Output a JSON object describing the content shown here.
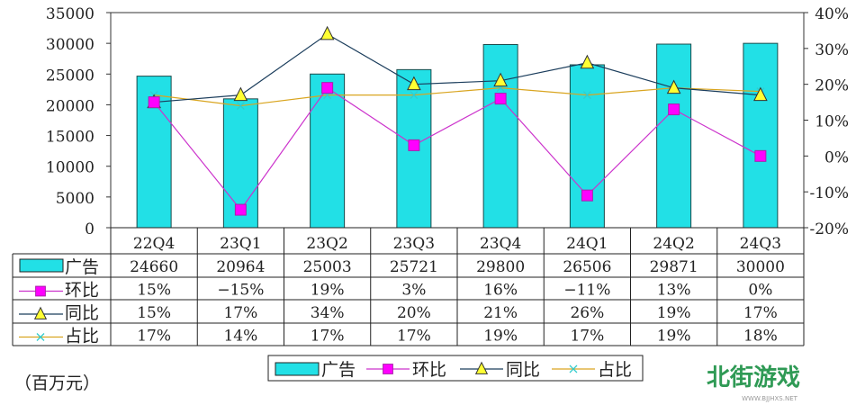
{
  "chart_data": {
    "type": "bar",
    "categories": [
      "22Q4",
      "23Q1",
      "23Q2",
      "23Q3",
      "23Q4",
      "24Q1",
      "24Q2",
      "24Q3"
    ],
    "unit_label": "（百万元）",
    "left_axis": {
      "ylim": [
        0,
        35000
      ],
      "ticks": [
        "35000",
        "30000",
        "25000",
        "20000",
        "15000",
        "10000",
        "5000",
        "0"
      ]
    },
    "right_axis": {
      "ylim": [
        -20,
        40
      ],
      "ticks": [
        "40%",
        "30%",
        "20%",
        "10%",
        "0%",
        "-10%",
        "-20%"
      ]
    },
    "series": [
      {
        "name": "广告",
        "type": "bar",
        "axis": "left",
        "color": "#22e0e6",
        "values": [
          24660,
          20964,
          25003,
          25721,
          29800,
          26506,
          29871,
          30000
        ],
        "labels": [
          "24660",
          "20964",
          "25003",
          "25721",
          "29800",
          "26506",
          "29871",
          "30000"
        ]
      },
      {
        "name": "环比",
        "type": "line",
        "axis": "right",
        "color": "#cc33cc",
        "marker_color": "#ff00ff",
        "values": [
          15,
          -15,
          19,
          3,
          16,
          -11,
          13,
          0
        ],
        "labels": [
          "15%",
          "−15%",
          "19%",
          "3%",
          "16%",
          "−11%",
          "13%",
          "0%"
        ]
      },
      {
        "name": "同比",
        "type": "line",
        "axis": "right",
        "color": "#1b3d5c",
        "marker_color": "#ffff33",
        "values": [
          15,
          17,
          34,
          20,
          21,
          26,
          19,
          17
        ],
        "labels": [
          "15%",
          "17%",
          "34%",
          "20%",
          "21%",
          "26%",
          "19%",
          "17%"
        ]
      },
      {
        "name": "占比",
        "type": "line",
        "axis": "right",
        "color": "#d9a520",
        "marker_color": "#33cccc",
        "values": [
          17,
          14,
          17,
          17,
          19,
          17,
          19,
          18
        ],
        "labels": [
          "17%",
          "14%",
          "17%",
          "17%",
          "19%",
          "17%",
          "19%",
          "18%"
        ]
      }
    ],
    "legend": {
      "placement": "bottom",
      "labels": [
        "广告",
        "环比",
        "同比",
        "占比"
      ]
    },
    "grid": false
  },
  "watermark": {
    "text": "北街游戏",
    "url_text": "WWW.BJJHXS.NET"
  }
}
